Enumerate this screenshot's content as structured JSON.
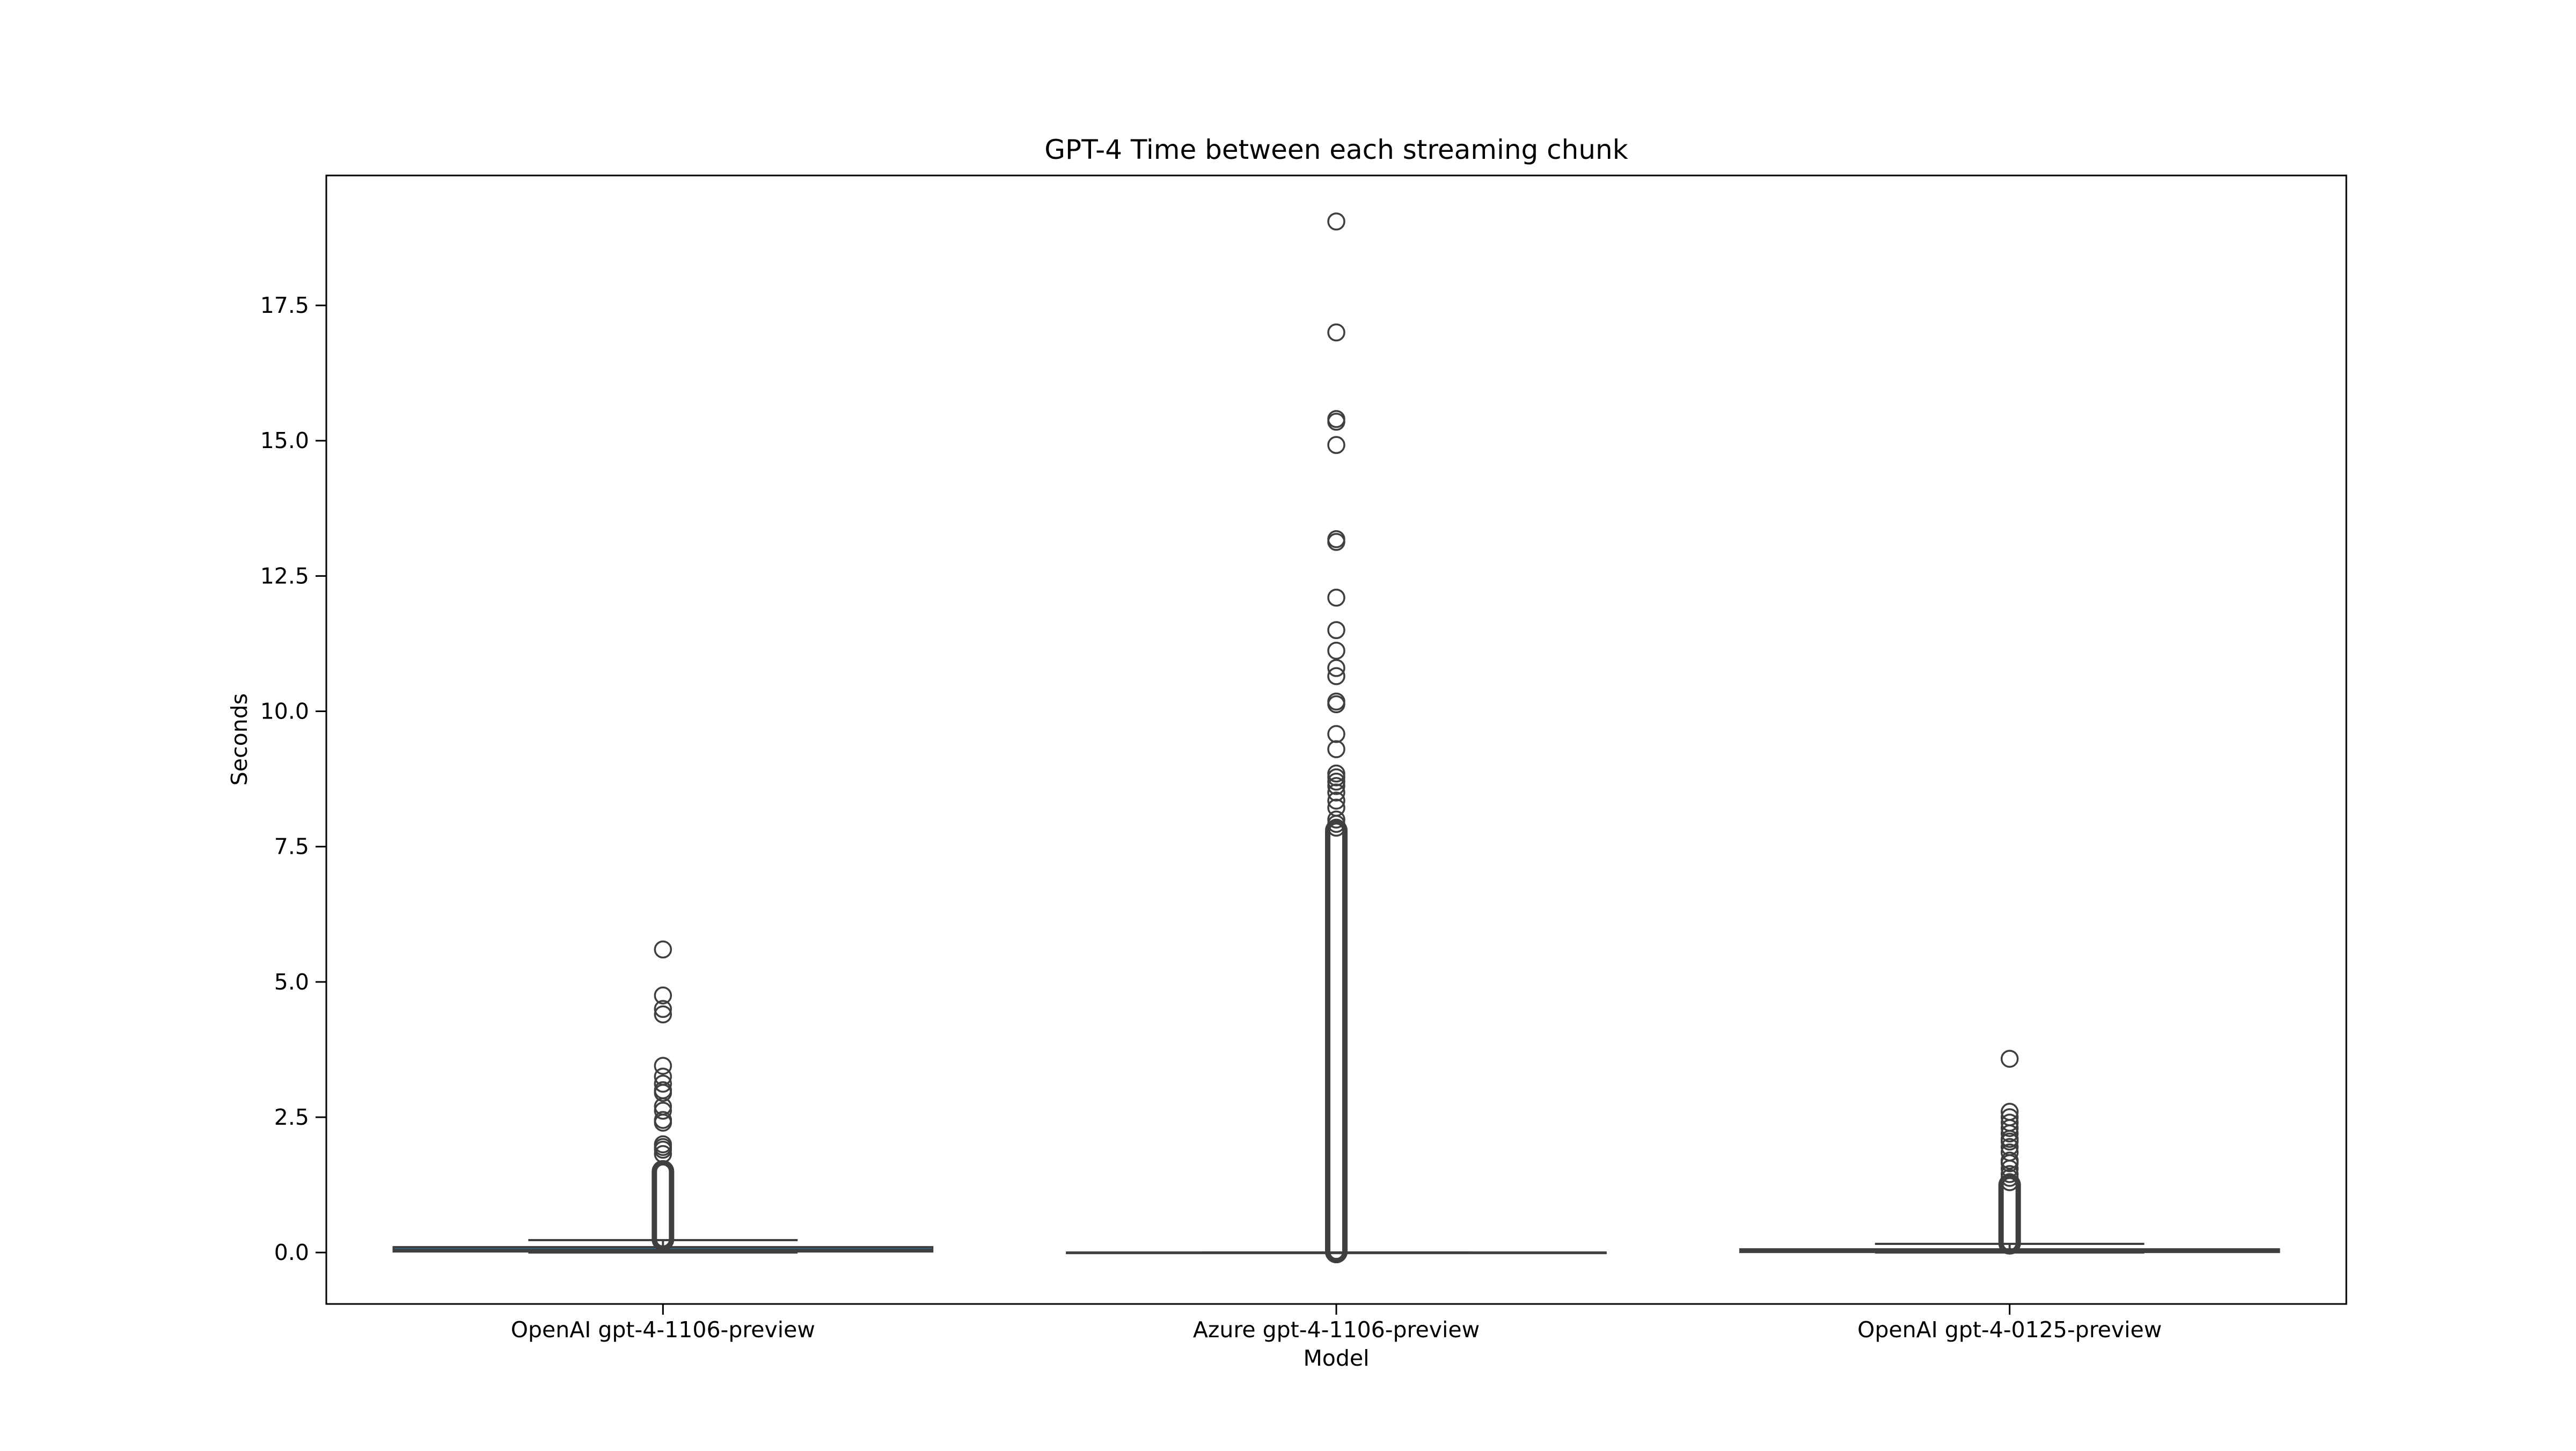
{
  "chart_data": {
    "type": "box",
    "title": "GPT-4 Time between each streaming chunk",
    "xlabel": "Model",
    "ylabel": "Seconds",
    "ylim": [
      -0.95,
      19.9
    ],
    "yticks": [
      0.0,
      2.5,
      5.0,
      7.5,
      10.0,
      12.5,
      15.0,
      17.5
    ],
    "ytick_labels": [
      "0.0",
      "2.5",
      "5.0",
      "7.5",
      "10.0",
      "12.5",
      "15.0",
      "17.5"
    ],
    "grid": false,
    "legend": "none",
    "categories": [
      "OpenAI gpt-4-1106-preview",
      "Azure gpt-4-1106-preview",
      "OpenAI gpt-4-0125-preview"
    ],
    "boxes": [
      {
        "category": "OpenAI gpt-4-1106-preview",
        "color": "#1f77b4",
        "q1": 0.02,
        "median": 0.05,
        "q3": 0.1,
        "whisker_low": 0.0,
        "whisker_high": 0.23,
        "outliers": [
          5.6,
          4.75,
          4.5,
          4.4,
          3.45,
          3.25,
          3.12,
          3.0,
          2.95,
          2.7,
          2.62,
          2.45,
          2.4,
          2.0,
          1.95,
          1.9,
          1.82
        ],
        "dense_outlier_range": [
          0.24,
          1.5
        ]
      },
      {
        "category": "Azure gpt-4-1106-preview",
        "color": "#ff7f0e",
        "q1": 0.0,
        "median": 0.0,
        "q3": 0.0,
        "whisker_low": 0.0,
        "whisker_high": 0.0,
        "outliers": [
          19.05,
          17.0,
          15.4,
          15.35,
          14.92,
          13.18,
          13.13,
          12.1,
          11.5,
          11.12,
          10.8,
          10.65,
          10.18,
          10.13,
          9.58,
          9.3,
          8.85,
          8.78,
          8.7,
          8.62,
          8.5,
          8.35,
          8.22,
          8.0,
          7.92,
          7.85
        ],
        "dense_outlier_range": [
          0.01,
          7.8
        ]
      },
      {
        "category": "OpenAI gpt-4-0125-preview",
        "color": "#2ca02c",
        "q1": 0.01,
        "median": 0.03,
        "q3": 0.06,
        "whisker_low": 0.0,
        "whisker_high": 0.16,
        "outliers": [
          3.58,
          2.6,
          2.5,
          2.4,
          2.3,
          2.2,
          2.1,
          2.05,
          1.95,
          1.85,
          1.7,
          1.65,
          1.55,
          1.45,
          1.38,
          1.3
        ],
        "dense_outlier_range": [
          0.17,
          1.25
        ]
      }
    ]
  }
}
